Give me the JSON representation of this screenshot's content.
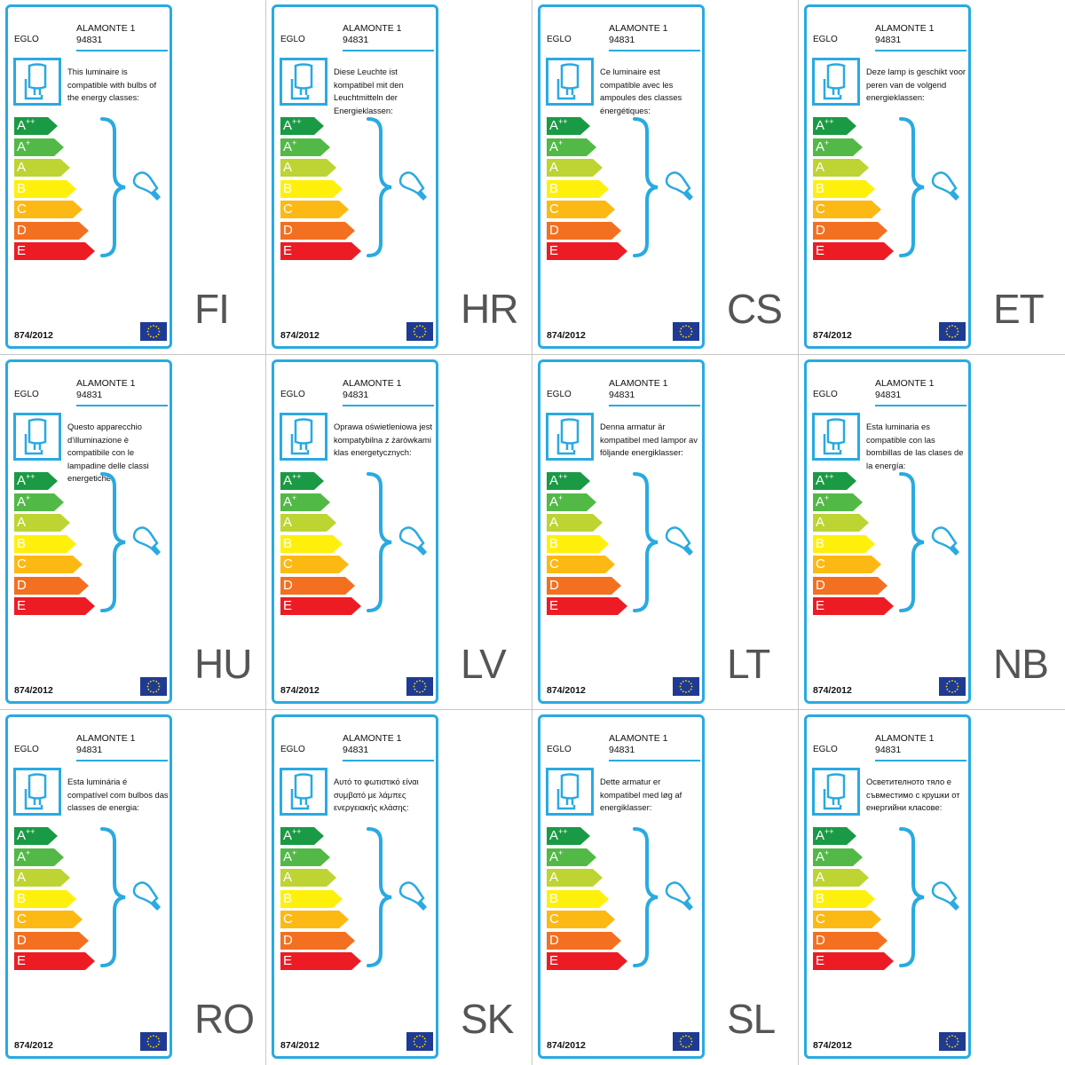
{
  "labels": [
    {
      "lang": "FI",
      "brand": "EGLO",
      "model_name": "ALAMONTE 1",
      "model_number": "94831",
      "text": "This luminaire is compatible with bulbs of the energy classes:",
      "regulation": "874/2012"
    },
    {
      "lang": "HR",
      "brand": "EGLO",
      "model_name": "ALAMONTE 1",
      "model_number": "94831",
      "text": "Diese Leuchte ist kompatibel mit den Leuchtmitteln der Energieklassen:",
      "regulation": "874/2012"
    },
    {
      "lang": "CS",
      "brand": "EGLO",
      "model_name": "ALAMONTE 1",
      "model_number": "94831",
      "text": "Ce luminaire est compatible avec les ampoules des classes énergétiques:",
      "regulation": "874/2012"
    },
    {
      "lang": "ET",
      "brand": "EGLO",
      "model_name": "ALAMONTE 1",
      "model_number": "94831",
      "text": "Deze lamp is geschikt voor peren van de volgend energieklassen:",
      "regulation": "874/2012"
    },
    {
      "lang": "HU",
      "brand": "EGLO",
      "model_name": "ALAMONTE 1",
      "model_number": "94831",
      "text": "Questo apparecchio d'illuminazione è compatibile con le lampadine delle classi energetiche:",
      "regulation": "874/2012"
    },
    {
      "lang": "LV",
      "brand": "EGLO",
      "model_name": "ALAMONTE 1",
      "model_number": "94831",
      "text": "Oprawa oświetleniowa jest kompatybilna z żarówkami klas energetycznych:",
      "regulation": "874/2012"
    },
    {
      "lang": "LT",
      "brand": "EGLO",
      "model_name": "ALAMONTE 1",
      "model_number": "94831",
      "text": "Denna armatur är kompatibel med lampor av följande energiklasser:",
      "regulation": "874/2012"
    },
    {
      "lang": "NB",
      "brand": "EGLO",
      "model_name": "ALAMONTE 1",
      "model_number": "94831",
      "text": "Esta luminaria es compatible con las bombillas de las clases de la energía:",
      "regulation": "874/2012"
    },
    {
      "lang": "RO",
      "brand": "EGLO",
      "model_name": "ALAMONTE 1",
      "model_number": "94831",
      "text": "Esta luminária é compatível com bulbos das classes de energia:",
      "regulation": "874/2012"
    },
    {
      "lang": "SK",
      "brand": "EGLO",
      "model_name": "ALAMONTE 1",
      "model_number": "94831",
      "text": "Αυτό το φωτιστικό είναι συμβατό με λάμπες ενεργειακής κλάσης:",
      "regulation": "874/2012"
    },
    {
      "lang": "SL",
      "brand": "EGLO",
      "model_name": "ALAMONTE 1",
      "model_number": "94831",
      "text": "Dette armatur er kompatibel med løg af energiklasser:",
      "regulation": "874/2012"
    },
    {
      "lang": "",
      "brand": "EGLO",
      "model_name": "ALAMONTE 1",
      "model_number": "94831",
      "text": "Осветителното тяло е съвместимо с крушки от енергийни класове:",
      "regulation": "874/2012"
    }
  ],
  "energy_classes": [
    {
      "letter": "A",
      "sup": "++",
      "color": "#1a9a44"
    },
    {
      "letter": "A",
      "sup": "+",
      "color": "#52b947"
    },
    {
      "letter": "A",
      "sup": "",
      "color": "#bdd432"
    },
    {
      "letter": "B",
      "sup": "",
      "color": "#fff00c"
    },
    {
      "letter": "C",
      "sup": "",
      "color": "#fdb913"
    },
    {
      "letter": "D",
      "sup": "",
      "color": "#f37021"
    },
    {
      "letter": "E",
      "sup": "",
      "color": "#ed1c24"
    }
  ],
  "icons": {
    "lamp": "lamp-icon",
    "bulb": "bulb-icon",
    "brace": "brace-icon",
    "flag": "eu-flag-icon"
  },
  "colors": {
    "frame": "#29aae1",
    "lang_text": "#555555",
    "eu_blue": "#1f3a93",
    "eu_star": "#ffdd00"
  }
}
